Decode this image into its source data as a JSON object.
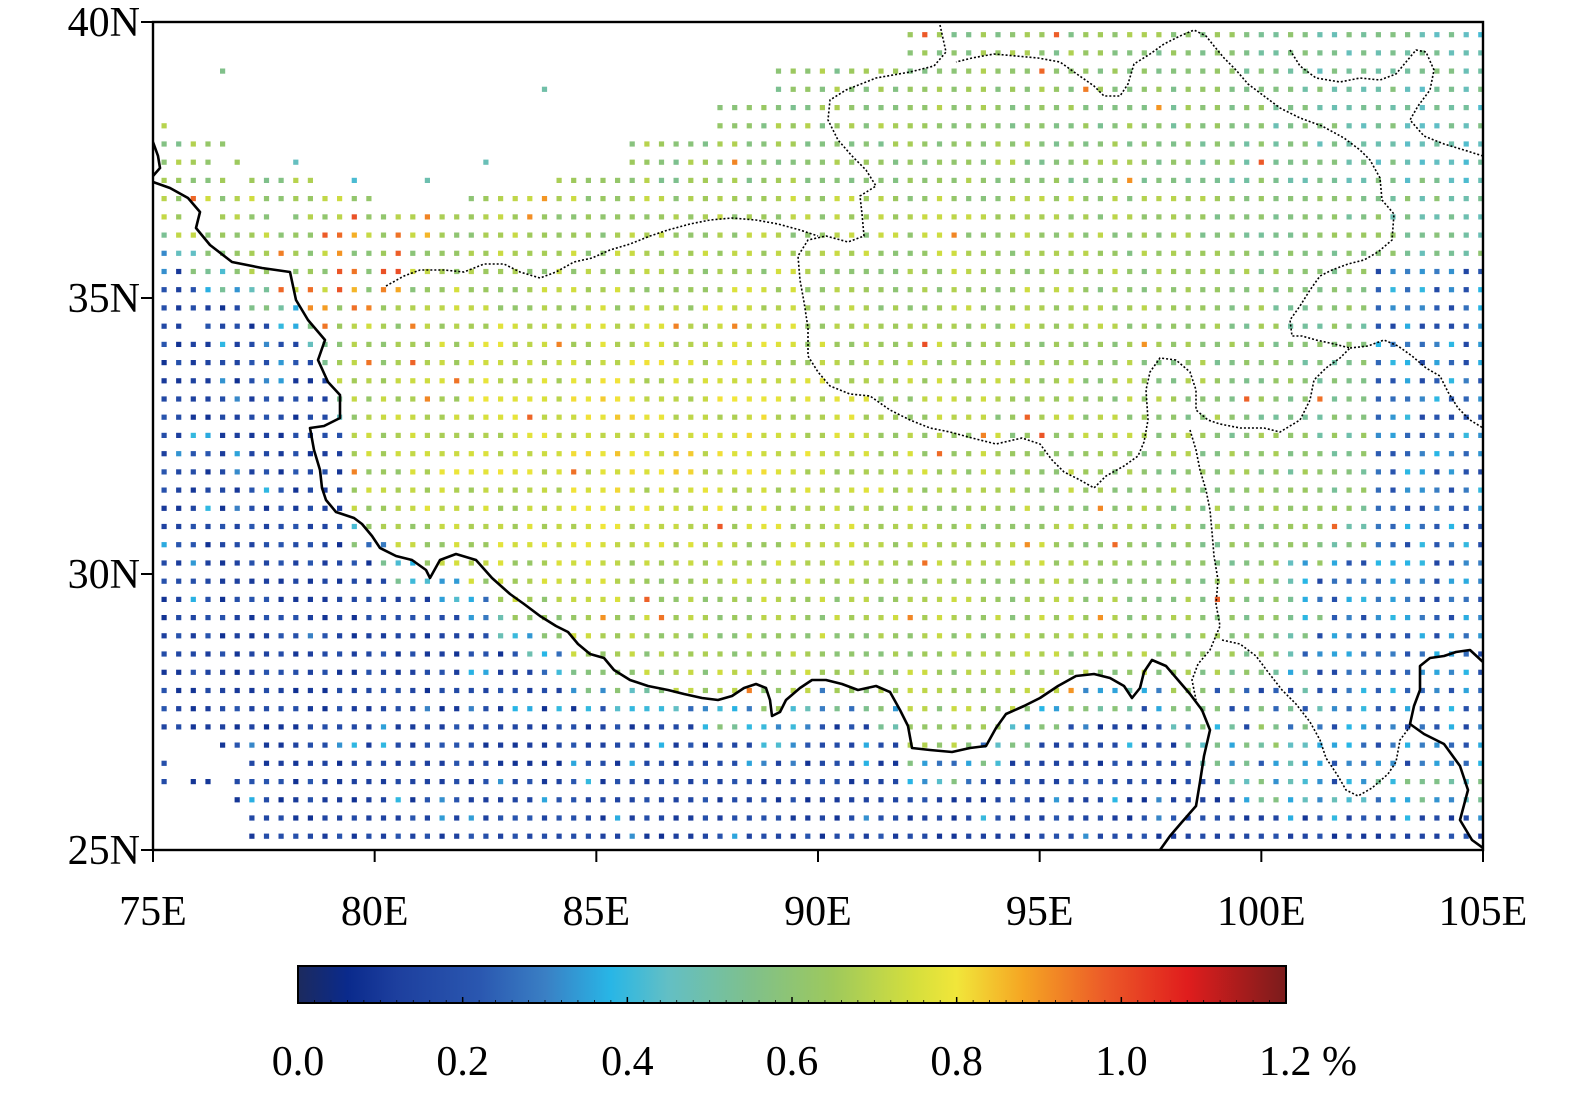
{
  "map": {
    "extent": {
      "lon_min": 75,
      "lon_max": 105,
      "lat_min": 25,
      "lat_max": 40
    },
    "x_ticks": [
      {
        "value": 75,
        "label": "75E"
      },
      {
        "value": 80,
        "label": "80E"
      },
      {
        "value": 85,
        "label": "85E"
      },
      {
        "value": 90,
        "label": "90E"
      },
      {
        "value": 95,
        "label": "95E"
      },
      {
        "value": 100,
        "label": "100E"
      },
      {
        "value": 105,
        "label": "105E"
      }
    ],
    "y_ticks": [
      {
        "value": 25,
        "label": "25N"
      },
      {
        "value": 30,
        "label": "30N"
      },
      {
        "value": 35,
        "label": "35N"
      },
      {
        "value": 40,
        "label": "40N"
      }
    ],
    "grid_step_deg": 0.33,
    "field_description": "Gridded values (percent) shown as colored square markers over the Tibetan Plateau region",
    "border_color": "#000000"
  },
  "colorbar": {
    "min": 0.0,
    "max": 1.2,
    "unit": "%",
    "tick_labels": [
      "0.0",
      "0.2",
      "0.4",
      "0.6",
      "0.8",
      "1.0",
      "1.2 %"
    ],
    "tick_values": [
      0.0,
      0.2,
      0.4,
      0.6,
      0.8,
      1.0,
      1.2
    ],
    "stops": [
      {
        "v": 0.0,
        "color": "#1c2a5e"
      },
      {
        "v": 0.06,
        "color": "#0a2a8c"
      },
      {
        "v": 0.12,
        "color": "#1d3f9e"
      },
      {
        "v": 0.22,
        "color": "#2a57b0"
      },
      {
        "v": 0.3,
        "color": "#3a7fc4"
      },
      {
        "v": 0.38,
        "color": "#28b6e6"
      },
      {
        "v": 0.45,
        "color": "#63bfc4"
      },
      {
        "v": 0.55,
        "color": "#7fc08b"
      },
      {
        "v": 0.65,
        "color": "#9ec95c"
      },
      {
        "v": 0.75,
        "color": "#d6df3c"
      },
      {
        "v": 0.8,
        "color": "#f1e63a"
      },
      {
        "v": 0.88,
        "color": "#f5a623"
      },
      {
        "v": 0.98,
        "color": "#ec5a28"
      },
      {
        "v": 1.08,
        "color": "#e01d1d"
      },
      {
        "v": 1.2,
        "color": "#7a1c1c"
      }
    ]
  }
}
